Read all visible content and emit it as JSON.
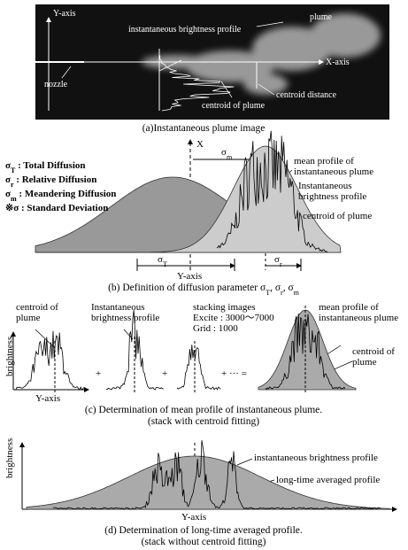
{
  "panel_a": {
    "y_axis": "Y-axis",
    "profile": "instantaneous brightness profile",
    "plume": "plume",
    "x_axis": "X-axis",
    "nozzle": "nozzle",
    "centroid_distance": "centroid distance",
    "centroid": "centroid of plume",
    "caption": "(a)Instantaneous plume image"
  },
  "panel_b": {
    "legend": [
      [
        "σ",
        "T",
        " : Total Diffusion"
      ],
      [
        "σ",
        "r",
        " : Relative Diffusion"
      ],
      [
        "σ",
        "m",
        " : Meandering Diffusion"
      ],
      [
        "※σ",
        "",
        " : Standard Deviation"
      ]
    ],
    "x": "X",
    "sigma_m": [
      "σ",
      "m"
    ],
    "mean_profile": [
      "mean profile of",
      "instantaneous plume"
    ],
    "inst_profile": [
      "Instantaneous",
      "brightness profile"
    ],
    "centroid": "centroid of plume",
    "sigma_t": [
      "σ",
      "T"
    ],
    "sigma_r": [
      "σ",
      "r"
    ],
    "y_axis": "Y-axis",
    "caption": [
      "(b) Definition of diffusion parameter σ",
      "T",
      ", σ",
      "r",
      ", σ",
      "m"
    ]
  },
  "panel_c": {
    "centroid_left": [
      "centroid of",
      "plume"
    ],
    "inst_profile": [
      "Instantaneous",
      "brightness profile"
    ],
    "stacking": [
      "stacking images",
      "Excite : 3000〜7000",
      "Grid : 1000"
    ],
    "mean_profile": [
      "mean profile of",
      "instantaneous plume"
    ],
    "centroid_right": [
      "centroid of",
      "plume"
    ],
    "brightness": "brightness",
    "y_axis": "Y-axis",
    "plus_1": "+",
    "plus_2": "+",
    "plus_3": "+ ··· =",
    "caption": [
      "(c) Determination of mean profile of instantaneous plume.",
      "(stack with centroid fitting)"
    ]
  },
  "panel_d": {
    "brightness": "brightness",
    "inst_profile": "instantaneous brightness profile",
    "long_profile": "long-time averaged profile",
    "y_axis": "Y-axis",
    "caption": [
      "(d) Determination of long-time averaged profile.",
      "(stack without centroid fitting)"
    ]
  }
}
